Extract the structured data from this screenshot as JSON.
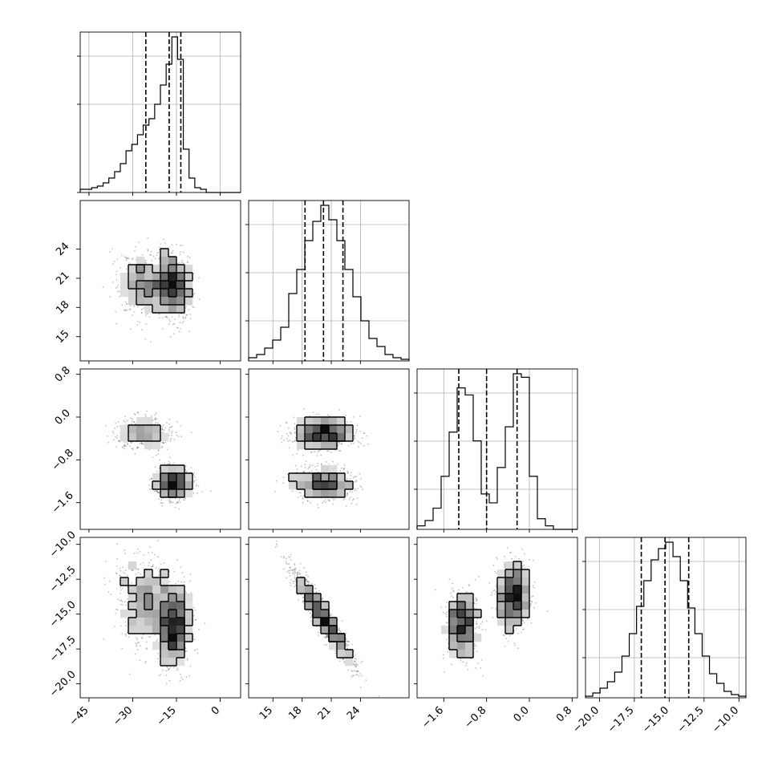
{
  "chart_data": {
    "type": "corner",
    "title": "",
    "parameters": [
      {
        "index": 0,
        "range": [
          -48,
          7
        ],
        "ticks": [
          -45,
          -30,
          -15,
          0
        ],
        "tick_labels": [
          "−45",
          "−30",
          "−15",
          "0"
        ],
        "quantiles": [
          -25.5,
          -17.5,
          -13.5
        ],
        "modes": [
          {
            "mean": -16,
            "sd": 3.0,
            "weight": 0.6
          },
          {
            "mean": -26,
            "sd": 4.5,
            "weight": 0.4
          }
        ]
      },
      {
        "index": 1,
        "range": [
          12.5,
          29
        ],
        "ticks": [
          15,
          18,
          21,
          24
        ],
        "tick_labels": [
          "15",
          "18",
          "21",
          "24"
        ],
        "quantiles": [
          18.3,
          20.2,
          22.2
        ],
        "modes": [
          {
            "mean": 20.2,
            "sd": 1.6,
            "weight": 1.0
          }
        ]
      },
      {
        "index": 2,
        "range": [
          -2.1,
          0.9
        ],
        "ticks": [
          -1.6,
          -0.8,
          0.0,
          0.8
        ],
        "tick_labels": [
          "−1.6",
          "−0.8",
          "0.0",
          "0.8"
        ],
        "quantiles": [
          -1.32,
          -0.8,
          -0.23
        ],
        "modes": [
          {
            "mean": -1.25,
            "sd": 0.15,
            "weight": 0.45
          },
          {
            "mean": -0.3,
            "sd": 0.15,
            "weight": 0.55
          }
        ]
      },
      {
        "index": 3,
        "range": [
          -21,
          -9.5
        ],
        "ticks": [
          -20.0,
          -17.5,
          -15.0,
          -12.5,
          -10.0
        ],
        "tick_labels": [
          "−20.0",
          "−17.5",
          "−15.0",
          "−12.5",
          "−10.0"
        ],
        "quantiles": [
          -17.0,
          -15.3,
          -13.6
        ],
        "modes": [
          {
            "mean": -15.3,
            "sd": 1.7,
            "weight": 1.0
          }
        ]
      }
    ],
    "histograms": [
      {
        "param": 0,
        "yticks": [
          0.0,
          0.37,
          0.75
        ],
        "bins": 28,
        "counts": [
          0.02,
          0.02,
          0.03,
          0.04,
          0.06,
          0.09,
          0.13,
          0.18,
          0.26,
          0.3,
          0.36,
          0.42,
          0.46,
          0.55,
          0.67,
          0.8,
          0.97,
          0.83,
          0.27,
          0.09,
          0.03,
          0.02,
          0.0,
          0.0,
          0.0,
          0.0,
          0.0,
          0.0
        ]
      },
      {
        "param": 1,
        "yticks": [
          0.3,
          0.6,
          0.9
        ],
        "bins": 20,
        "counts": [
          0.02,
          0.04,
          0.08,
          0.13,
          0.21,
          0.42,
          0.57,
          0.75,
          0.87,
          0.97,
          0.88,
          0.75,
          0.57,
          0.4,
          0.25,
          0.14,
          0.09,
          0.04,
          0.02,
          0.01
        ]
      },
      {
        "param": 2,
        "yticks": [
          0.5,
          1.0,
          1.5
        ],
        "bins": 20,
        "counts": [
          0.02,
          0.05,
          0.12,
          0.3,
          0.55,
          0.8,
          0.76,
          0.5,
          0.2,
          0.15,
          0.35,
          0.58,
          0.88,
          0.86,
          0.3,
          0.06,
          0.02,
          0.0,
          0.0,
          0.0
        ]
      },
      {
        "param": 3,
        "yticks": [
          0.08,
          0.16,
          0.24
        ],
        "bins": 22,
        "counts": [
          0.01,
          0.03,
          0.06,
          0.1,
          0.16,
          0.26,
          0.4,
          0.57,
          0.73,
          0.86,
          0.93,
          0.97,
          0.88,
          0.73,
          0.56,
          0.4,
          0.26,
          0.15,
          0.09,
          0.04,
          0.02,
          0.01
        ]
      }
    ],
    "correlations": [
      {
        "row": 1,
        "col": 0,
        "pairs": [
          [
            0,
            0,
            -0.3
          ]
        ]
      },
      {
        "row": 2,
        "col": 0,
        "pairs": [
          [
            1,
            0,
            0.0
          ]
        ],
        "coupling": [
          0.9,
          0.1
        ]
      },
      {
        "row": 2,
        "col": 1,
        "coupling": [
          0.05,
          0.0
        ]
      },
      {
        "row": 3,
        "col": 0,
        "coupling": [
          0.0,
          0.0
        ]
      },
      {
        "row": 3,
        "col": 1,
        "rho": -0.95
      },
      {
        "row": 3,
        "col": 2,
        "coupling": [
          0.0,
          0.0
        ]
      }
    ],
    "contour_levels": [
      "39%",
      "86%",
      "99%"
    ],
    "grid": true
  }
}
